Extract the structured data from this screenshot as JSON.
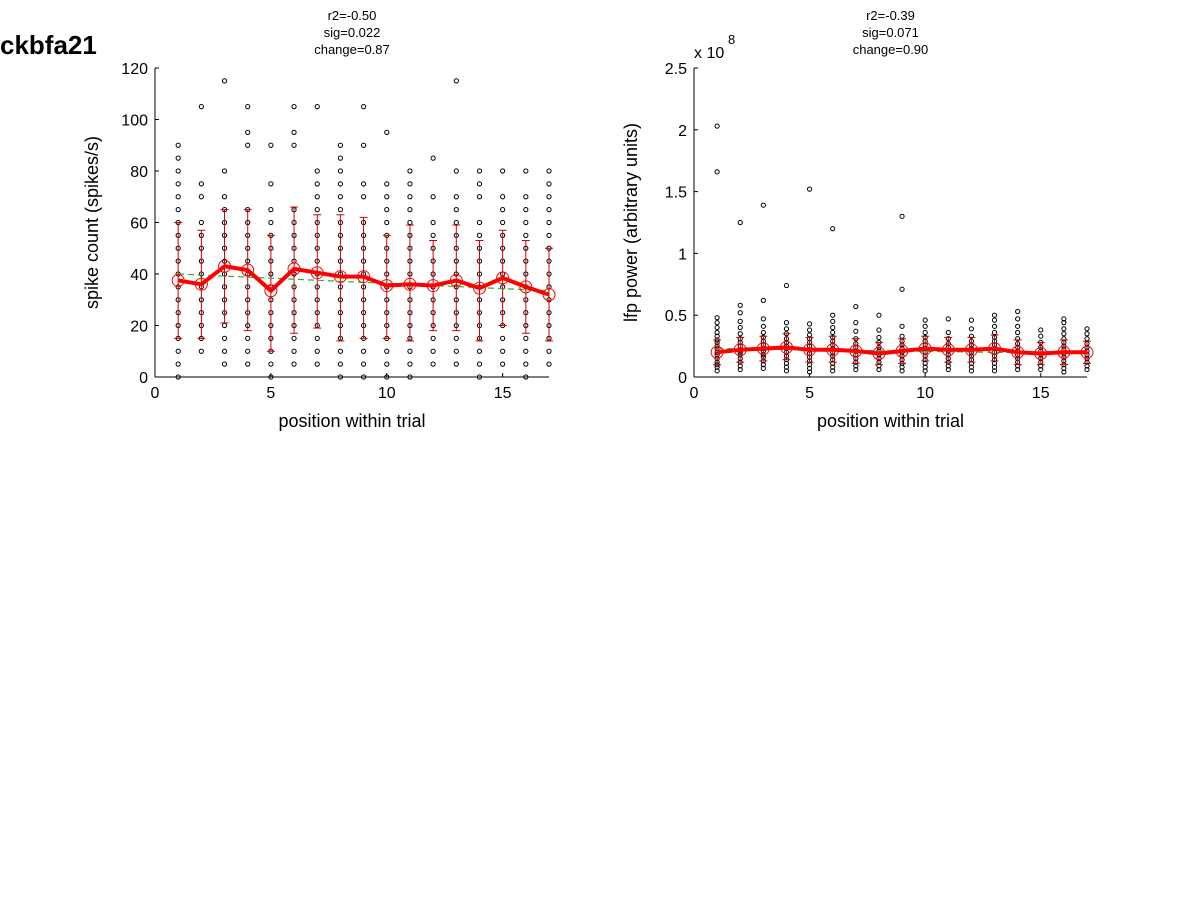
{
  "figure": {
    "title": "ckbfa21"
  },
  "chart_data": [
    {
      "type": "scatter",
      "stats": [
        "r2=-0.50",
        "sig=0.022",
        "change=0.87"
      ],
      "xlabel": "position within trial",
      "ylabel": "spike count (spikes/s)",
      "xlim": [
        0,
        17
      ],
      "ylim": [
        0,
        120
      ],
      "xticks": [
        "0",
        "5",
        "10",
        "15"
      ],
      "yticks": [
        "0",
        "20",
        "40",
        "60",
        "80",
        "100",
        "120"
      ],
      "scale_label": "",
      "points": [
        {
          "x": 1,
          "y": [
            0,
            5,
            10,
            15,
            20,
            25,
            30,
            35,
            40,
            45,
            50,
            55,
            60,
            65,
            70,
            75,
            80,
            85,
            90
          ]
        },
        {
          "x": 2,
          "y": [
            10,
            15,
            20,
            25,
            30,
            35,
            40,
            45,
            50,
            55,
            60,
            70,
            75,
            105
          ]
        },
        {
          "x": 3,
          "y": [
            5,
            10,
            15,
            20,
            25,
            30,
            35,
            40,
            45,
            50,
            55,
            60,
            65,
            70,
            80,
            115
          ]
        },
        {
          "x": 4,
          "y": [
            5,
            10,
            15,
            20,
            25,
            30,
            35,
            40,
            45,
            50,
            55,
            60,
            65,
            90,
            95,
            105
          ]
        },
        {
          "x": 5,
          "y": [
            0,
            5,
            10,
            15,
            20,
            25,
            30,
            35,
            40,
            45,
            50,
            55,
            60,
            65,
            75,
            90
          ]
        },
        {
          "x": 6,
          "y": [
            5,
            10,
            15,
            20,
            25,
            30,
            35,
            40,
            45,
            50,
            55,
            60,
            65,
            90,
            95,
            105
          ]
        },
        {
          "x": 7,
          "y": [
            5,
            10,
            15,
            20,
            25,
            30,
            35,
            40,
            45,
            50,
            55,
            60,
            65,
            70,
            75,
            80,
            105
          ]
        },
        {
          "x": 8,
          "y": [
            0,
            5,
            10,
            15,
            20,
            25,
            30,
            35,
            40,
            45,
            50,
            55,
            60,
            65,
            70,
            75,
            80,
            85,
            90
          ]
        },
        {
          "x": 9,
          "y": [
            0,
            5,
            10,
            15,
            20,
            25,
            30,
            35,
            40,
            45,
            50,
            55,
            60,
            70,
            75,
            90,
            105
          ]
        },
        {
          "x": 10,
          "y": [
            0,
            5,
            10,
            15,
            20,
            25,
            30,
            35,
            40,
            45,
            50,
            55,
            60,
            65,
            70,
            75,
            95
          ]
        },
        {
          "x": 11,
          "y": [
            0,
            5,
            10,
            15,
            20,
            25,
            30,
            35,
            40,
            45,
            50,
            55,
            60,
            65,
            70,
            75,
            80
          ]
        },
        {
          "x": 12,
          "y": [
            5,
            10,
            15,
            20,
            25,
            30,
            35,
            40,
            45,
            50,
            55,
            60,
            70,
            85
          ]
        },
        {
          "x": 13,
          "y": [
            5,
            10,
            15,
            20,
            25,
            30,
            35,
            40,
            45,
            50,
            55,
            60,
            65,
            70,
            80,
            115
          ]
        },
        {
          "x": 14,
          "y": [
            0,
            5,
            10,
            15,
            20,
            25,
            30,
            35,
            40,
            45,
            50,
            55,
            60,
            70,
            75,
            80
          ]
        },
        {
          "x": 15,
          "y": [
            5,
            10,
            15,
            20,
            25,
            30,
            35,
            40,
            45,
            50,
            55,
            60,
            65,
            70,
            80
          ]
        },
        {
          "x": 16,
          "y": [
            0,
            5,
            10,
            15,
            20,
            25,
            30,
            35,
            40,
            45,
            50,
            55,
            60,
            65,
            70,
            80
          ]
        },
        {
          "x": 17,
          "y": [
            5,
            10,
            15,
            20,
            25,
            30,
            35,
            40,
            45,
            50,
            55,
            60,
            65,
            70,
            75,
            80
          ]
        }
      ],
      "mean": {
        "x": [
          1,
          2,
          3,
          4,
          5,
          6,
          7,
          8,
          9,
          10,
          11,
          12,
          13,
          14,
          15,
          16,
          17
        ],
        "y": [
          37.5,
          36,
          43,
          41.5,
          33.5,
          42,
          40.5,
          39,
          39,
          35.5,
          36,
          35.5,
          37.5,
          34.5,
          38.5,
          35,
          32
        ]
      },
      "error": {
        "x": [
          1,
          2,
          3,
          4,
          5,
          6,
          7,
          8,
          9,
          10,
          11,
          12,
          13,
          14,
          15,
          16,
          17
        ],
        "low": [
          15,
          15,
          21,
          18,
          10,
          17,
          19,
          14,
          15,
          15,
          14,
          18,
          18,
          14,
          20,
          17,
          14
        ],
        "high": [
          60,
          57,
          65,
          65,
          55,
          66,
          63,
          63,
          62,
          55,
          59,
          53,
          59,
          53,
          57,
          53,
          50
        ]
      },
      "fit": {
        "x": [
          1,
          17
        ],
        "y": [
          40,
          33.5
        ]
      }
    },
    {
      "type": "scatter",
      "stats": [
        "r2=-0.39",
        "sig=0.071",
        "change=0.90"
      ],
      "xlabel": "position within trial",
      "ylabel": "lfp power (arbitrary units)",
      "xlim": [
        0,
        17
      ],
      "ylim": [
        0,
        2.5
      ],
      "xticks": [
        "0",
        "5",
        "10",
        "15"
      ],
      "yticks": [
        "0",
        "0.5",
        "1",
        "1.5",
        "2",
        "2.5"
      ],
      "scale_label": "x 10",
      "scale_exp": "8",
      "points": [
        {
          "x": 1,
          "y": [
            0.05,
            0.08,
            0.1,
            0.12,
            0.15,
            0.18,
            0.2,
            0.23,
            0.25,
            0.28,
            0.3,
            0.33,
            0.36,
            0.4,
            0.44,
            0.48,
            1.66,
            2.03
          ]
        },
        {
          "x": 2,
          "y": [
            0.06,
            0.09,
            0.12,
            0.15,
            0.18,
            0.2,
            0.22,
            0.25,
            0.28,
            0.31,
            0.35,
            0.4,
            0.45,
            0.52,
            0.58,
            1.25
          ]
        },
        {
          "x": 3,
          "y": [
            0.07,
            0.1,
            0.13,
            0.16,
            0.18,
            0.21,
            0.23,
            0.26,
            0.29,
            0.32,
            0.36,
            0.41,
            0.47,
            0.62,
            1.39
          ]
        },
        {
          "x": 4,
          "y": [
            0.05,
            0.08,
            0.11,
            0.14,
            0.17,
            0.2,
            0.23,
            0.25,
            0.28,
            0.31,
            0.35,
            0.39,
            0.44,
            0.74
          ]
        },
        {
          "x": 5,
          "y": [
            0.04,
            0.07,
            0.1,
            0.13,
            0.16,
            0.19,
            0.22,
            0.25,
            0.28,
            0.31,
            0.34,
            0.38,
            0.43,
            1.52
          ]
        },
        {
          "x": 6,
          "y": [
            0.05,
            0.08,
            0.11,
            0.14,
            0.17,
            0.2,
            0.23,
            0.26,
            0.29,
            0.32,
            0.36,
            0.4,
            0.45,
            0.5,
            1.2
          ]
        },
        {
          "x": 7,
          "y": [
            0.06,
            0.09,
            0.12,
            0.15,
            0.18,
            0.21,
            0.24,
            0.27,
            0.31,
            0.37,
            0.44,
            0.57
          ]
        },
        {
          "x": 8,
          "y": [
            0.06,
            0.09,
            0.12,
            0.15,
            0.18,
            0.21,
            0.24,
            0.28,
            0.32,
            0.38,
            0.5
          ]
        },
        {
          "x": 9,
          "y": [
            0.05,
            0.08,
            0.11,
            0.14,
            0.17,
            0.2,
            0.23,
            0.26,
            0.29,
            0.33,
            0.41,
            0.71,
            1.3
          ]
        },
        {
          "x": 10,
          "y": [
            0.05,
            0.08,
            0.11,
            0.14,
            0.17,
            0.2,
            0.23,
            0.26,
            0.29,
            0.32,
            0.36,
            0.41,
            0.46
          ]
        },
        {
          "x": 11,
          "y": [
            0.06,
            0.09,
            0.12,
            0.15,
            0.18,
            0.21,
            0.24,
            0.27,
            0.31,
            0.36,
            0.47
          ]
        },
        {
          "x": 12,
          "y": [
            0.05,
            0.08,
            0.11,
            0.14,
            0.17,
            0.2,
            0.23,
            0.26,
            0.29,
            0.33,
            0.39,
            0.46
          ]
        },
        {
          "x": 13,
          "y": [
            0.05,
            0.08,
            0.11,
            0.14,
            0.17,
            0.2,
            0.23,
            0.26,
            0.29,
            0.32,
            0.36,
            0.41,
            0.46,
            0.5
          ]
        },
        {
          "x": 14,
          "y": [
            0.06,
            0.09,
            0.12,
            0.15,
            0.18,
            0.21,
            0.24,
            0.27,
            0.31,
            0.36,
            0.41,
            0.47,
            0.53
          ]
        },
        {
          "x": 15,
          "y": [
            0.06,
            0.09,
            0.12,
            0.15,
            0.18,
            0.21,
            0.24,
            0.28,
            0.33,
            0.38
          ]
        },
        {
          "x": 16,
          "y": [
            0.04,
            0.07,
            0.1,
            0.13,
            0.16,
            0.19,
            0.22,
            0.25,
            0.28,
            0.31,
            0.35,
            0.39,
            0.44,
            0.47
          ]
        },
        {
          "x": 17,
          "y": [
            0.06,
            0.09,
            0.12,
            0.15,
            0.18,
            0.21,
            0.24,
            0.27,
            0.31,
            0.35,
            0.39
          ]
        }
      ],
      "mean": {
        "x": [
          1,
          2,
          3,
          4,
          5,
          6,
          7,
          8,
          9,
          10,
          11,
          12,
          13,
          14,
          15,
          16,
          17
        ],
        "y": [
          0.2,
          0.22,
          0.23,
          0.24,
          0.22,
          0.22,
          0.21,
          0.19,
          0.21,
          0.23,
          0.22,
          0.22,
          0.23,
          0.2,
          0.19,
          0.2,
          0.2
        ]
      },
      "error": {
        "x": [
          1,
          2,
          3,
          4,
          5,
          6,
          7,
          8,
          9,
          10,
          11,
          12,
          13,
          14,
          15,
          16,
          17
        ],
        "low": [
          0.1,
          0.12,
          0.13,
          0.14,
          0.12,
          0.12,
          0.11,
          0.1,
          0.11,
          0.13,
          0.12,
          0.12,
          0.13,
          0.1,
          0.1,
          0.1,
          0.11
        ],
        "high": [
          0.3,
          0.32,
          0.33,
          0.35,
          0.32,
          0.33,
          0.31,
          0.28,
          0.31,
          0.33,
          0.32,
          0.32,
          0.34,
          0.3,
          0.28,
          0.3,
          0.29
        ]
      },
      "fit": {
        "x": [
          1,
          17
        ],
        "y": [
          0.23,
          0.19
        ]
      }
    }
  ],
  "colors": {
    "mean": "#ff0000",
    "error": "#cc0000",
    "fit": "#33aa33",
    "points": "#000000"
  }
}
